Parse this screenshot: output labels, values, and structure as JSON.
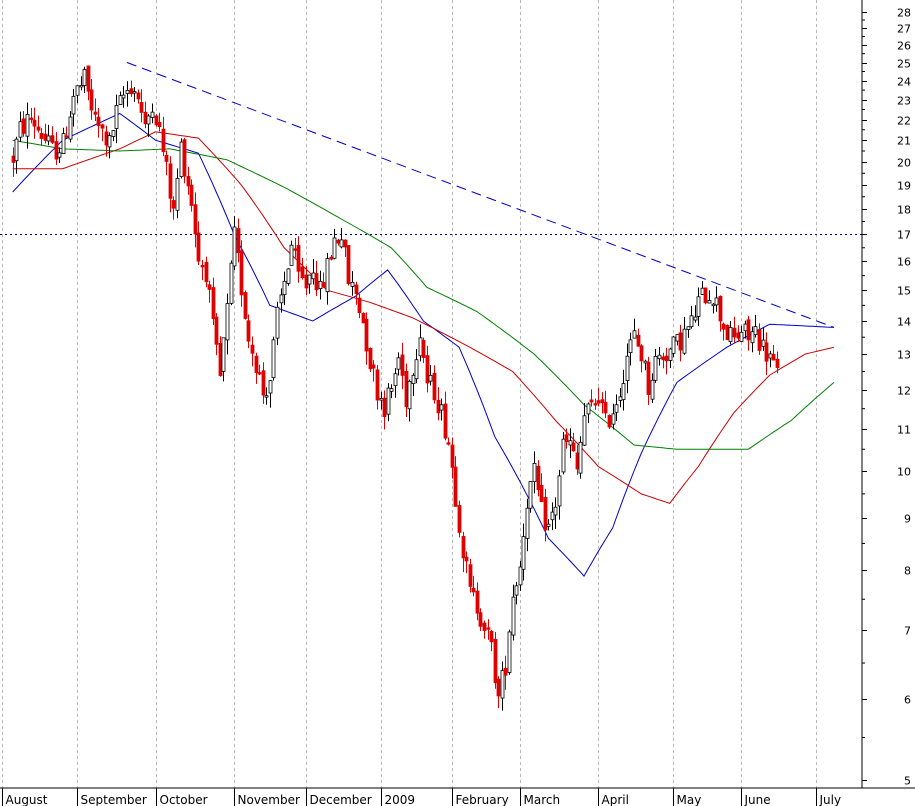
{
  "chart_data": {
    "type": "candlestick",
    "y_scale": "log",
    "ylim": [
      5,
      28
    ],
    "y_ticks": [
      5,
      6,
      7,
      8,
      9,
      10,
      11,
      12,
      13,
      14,
      15,
      16,
      17,
      18,
      19,
      20,
      21,
      22,
      23,
      24,
      25,
      26,
      27,
      28
    ],
    "x_ticks": [
      {
        "label": "August",
        "index": -3
      },
      {
        "label": "September",
        "index": 18
      },
      {
        "label": "October",
        "index": 40
      },
      {
        "label": "November",
        "index": 62
      },
      {
        "label": "December",
        "index": 82
      },
      {
        "label": "2009",
        "index": 103
      },
      {
        "label": "February",
        "index": 123
      },
      {
        "label": "March",
        "index": 142
      },
      {
        "label": "April",
        "index": 164
      },
      {
        "label": "May",
        "index": 185
      },
      {
        "label": "June",
        "index": 204
      },
      {
        "label": "July",
        "index": 225
      }
    ],
    "horizontal_reference": {
      "value": 17.0,
      "style": "dotted",
      "color": "#000080"
    },
    "trendline": {
      "start": {
        "index": 32,
        "value": 25.0
      },
      "end": {
        "index": 230,
        "value": 13.8
      },
      "color": "#0000cc",
      "style": "dashed"
    },
    "moving_average_anchors": [
      {
        "color": "#0000cc",
        "points": [
          [
            0,
            18.7
          ],
          [
            14,
            21.0
          ],
          [
            30,
            22.3
          ],
          [
            40,
            21.0
          ],
          [
            52,
            20.4
          ],
          [
            62,
            17.0
          ],
          [
            72,
            14.5
          ],
          [
            84,
            14.0
          ],
          [
            96,
            14.8
          ],
          [
            105,
            15.7
          ],
          [
            115,
            14.0
          ],
          [
            125,
            13.2
          ],
          [
            135,
            10.8
          ],
          [
            150,
            8.6
          ],
          [
            160,
            7.9
          ],
          [
            168,
            8.8
          ],
          [
            176,
            10.4
          ],
          [
            186,
            12.2
          ],
          [
            200,
            13.2
          ],
          [
            212,
            13.9
          ],
          [
            230,
            13.8
          ]
        ]
      },
      {
        "color": "#cc0000",
        "points": [
          [
            0,
            19.7
          ],
          [
            14,
            19.7
          ],
          [
            30,
            20.6
          ],
          [
            40,
            21.4
          ],
          [
            52,
            21.1
          ],
          [
            64,
            19.0
          ],
          [
            76,
            16.5
          ],
          [
            88,
            15.0
          ],
          [
            100,
            14.6
          ],
          [
            112,
            14.1
          ],
          [
            128,
            13.2
          ],
          [
            140,
            12.5
          ],
          [
            152,
            11.2
          ],
          [
            164,
            10.1
          ],
          [
            176,
            9.5
          ],
          [
            184,
            9.3
          ],
          [
            192,
            10.1
          ],
          [
            202,
            11.4
          ],
          [
            212,
            12.4
          ],
          [
            222,
            13.0
          ],
          [
            230,
            13.2
          ]
        ]
      },
      {
        "color": "#008000",
        "points": [
          [
            0,
            21.0
          ],
          [
            14,
            20.6
          ],
          [
            30,
            20.5
          ],
          [
            44,
            20.6
          ],
          [
            60,
            20.1
          ],
          [
            76,
            18.9
          ],
          [
            92,
            17.6
          ],
          [
            106,
            16.5
          ],
          [
            116,
            15.1
          ],
          [
            130,
            14.3
          ],
          [
            146,
            13.0
          ],
          [
            160,
            11.6
          ],
          [
            174,
            10.6
          ],
          [
            186,
            10.5
          ],
          [
            206,
            10.5
          ],
          [
            218,
            11.2
          ],
          [
            230,
            12.2
          ]
        ]
      }
    ],
    "path_anchors": [
      [
        0,
        20.2
      ],
      [
        2,
        21.5
      ],
      [
        5,
        22.1
      ],
      [
        8,
        21.3
      ],
      [
        11,
        20.5
      ],
      [
        14,
        20.8
      ],
      [
        17,
        23.2
      ],
      [
        20,
        24.0
      ],
      [
        23,
        21.9
      ],
      [
        27,
        20.8
      ],
      [
        29,
        22.3
      ],
      [
        31,
        23.2
      ],
      [
        33,
        23.8
      ],
      [
        35,
        23.2
      ],
      [
        37,
        21.4
      ],
      [
        39,
        23.0
      ],
      [
        41,
        21.4
      ],
      [
        43,
        19.6
      ],
      [
        45,
        17.8
      ],
      [
        47,
        20.7
      ],
      [
        50,
        18.3
      ],
      [
        52,
        16.1
      ],
      [
        54,
        15.7
      ],
      [
        56,
        13.7
      ],
      [
        58,
        12.3
      ],
      [
        60,
        14.3
      ],
      [
        62,
        16.9
      ],
      [
        64,
        15.1
      ],
      [
        66,
        13.5
      ],
      [
        68,
        12.8
      ],
      [
        70,
        11.9
      ],
      [
        72,
        12.3
      ],
      [
        74,
        14.1
      ],
      [
        76,
        15.3
      ],
      [
        78,
        16.6
      ],
      [
        80,
        15.4
      ],
      [
        82,
        15.2
      ],
      [
        84,
        15.9
      ],
      [
        86,
        14.9
      ],
      [
        88,
        15.8
      ],
      [
        90,
        16.8
      ],
      [
        92,
        17.0
      ],
      [
        94,
        15.3
      ],
      [
        96,
        14.9
      ],
      [
        98,
        14.0
      ],
      [
        100,
        12.8
      ],
      [
        102,
        12.0
      ],
      [
        104,
        11.6
      ],
      [
        106,
        12.0
      ],
      [
        108,
        12.9
      ],
      [
        110,
        11.8
      ],
      [
        112,
        12.7
      ],
      [
        114,
        13.7
      ],
      [
        116,
        12.2
      ],
      [
        118,
        12.0
      ],
      [
        120,
        11.4
      ],
      [
        122,
        10.7
      ],
      [
        124,
        9.5
      ],
      [
        126,
        8.4
      ],
      [
        128,
        7.6
      ],
      [
        130,
        7.4
      ],
      [
        132,
        7.1
      ],
      [
        134,
        6.7
      ],
      [
        136,
        6.0
      ],
      [
        138,
        6.5
      ],
      [
        140,
        7.6
      ],
      [
        142,
        8.1
      ],
      [
        144,
        9.4
      ],
      [
        146,
        9.9
      ],
      [
        148,
        9.1
      ],
      [
        150,
        8.8
      ],
      [
        152,
        9.3
      ],
      [
        154,
        10.6
      ],
      [
        156,
        10.6
      ],
      [
        158,
        10.0
      ],
      [
        160,
        11.3
      ],
      [
        162,
        11.5
      ],
      [
        164,
        11.9
      ],
      [
        166,
        11.1
      ],
      [
        168,
        11.5
      ],
      [
        170,
        12.0
      ],
      [
        172,
        13.0
      ],
      [
        174,
        13.5
      ],
      [
        176,
        13.0
      ],
      [
        178,
        12.1
      ],
      [
        180,
        12.8
      ],
      [
        182,
        13.0
      ],
      [
        184,
        13.1
      ],
      [
        186,
        13.3
      ],
      [
        188,
        13.6
      ],
      [
        190,
        13.9
      ],
      [
        192,
        14.6
      ],
      [
        194,
        14.9
      ],
      [
        196,
        14.9
      ],
      [
        198,
        14.2
      ],
      [
        200,
        13.6
      ],
      [
        202,
        13.4
      ],
      [
        204,
        13.7
      ],
      [
        206,
        13.5
      ],
      [
        208,
        13.7
      ],
      [
        210,
        13.2
      ],
      [
        212,
        12.9
      ],
      [
        214,
        12.4
      ]
    ],
    "x_range": [
      -3,
      230
    ]
  }
}
